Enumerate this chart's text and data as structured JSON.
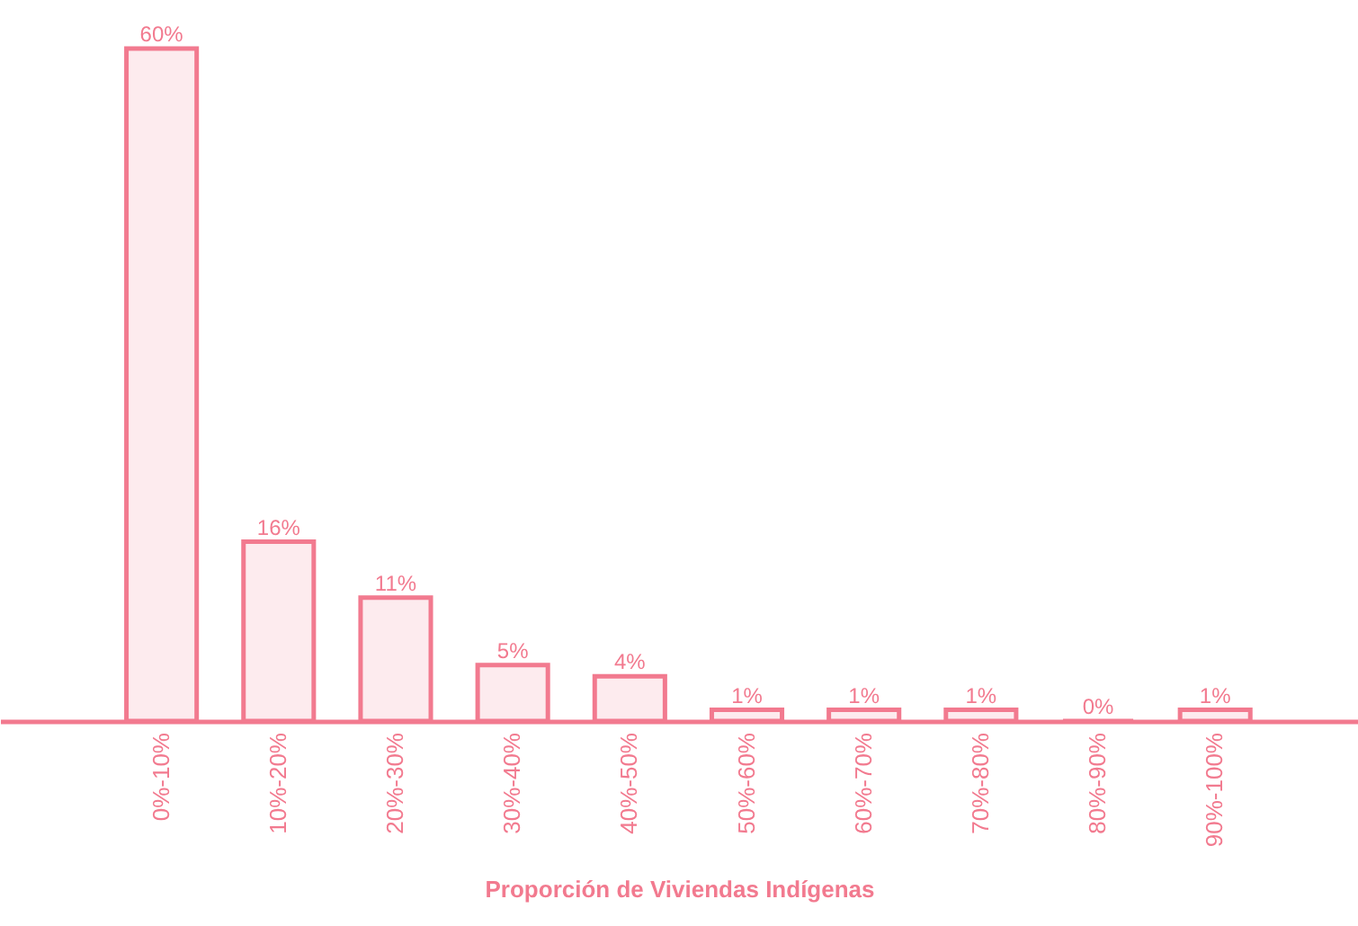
{
  "chart_data": {
    "type": "bar",
    "xlabel": "Proporción de Viviendas Indígenas",
    "categories": [
      "0%-10%",
      "10%-20%",
      "20%-30%",
      "30%-40%",
      "40%-50%",
      "50%-60%",
      "60%-70%",
      "70%-80%",
      "80%-90%",
      "90%-100%"
    ],
    "values": [
      60,
      16,
      11,
      5,
      4,
      1,
      1,
      1,
      0,
      1
    ],
    "value_labels": [
      "60%",
      "16%",
      "11%",
      "5%",
      "4%",
      "1%",
      "1%",
      "1%",
      "0%",
      "1%"
    ],
    "color": "#f27a8f"
  }
}
